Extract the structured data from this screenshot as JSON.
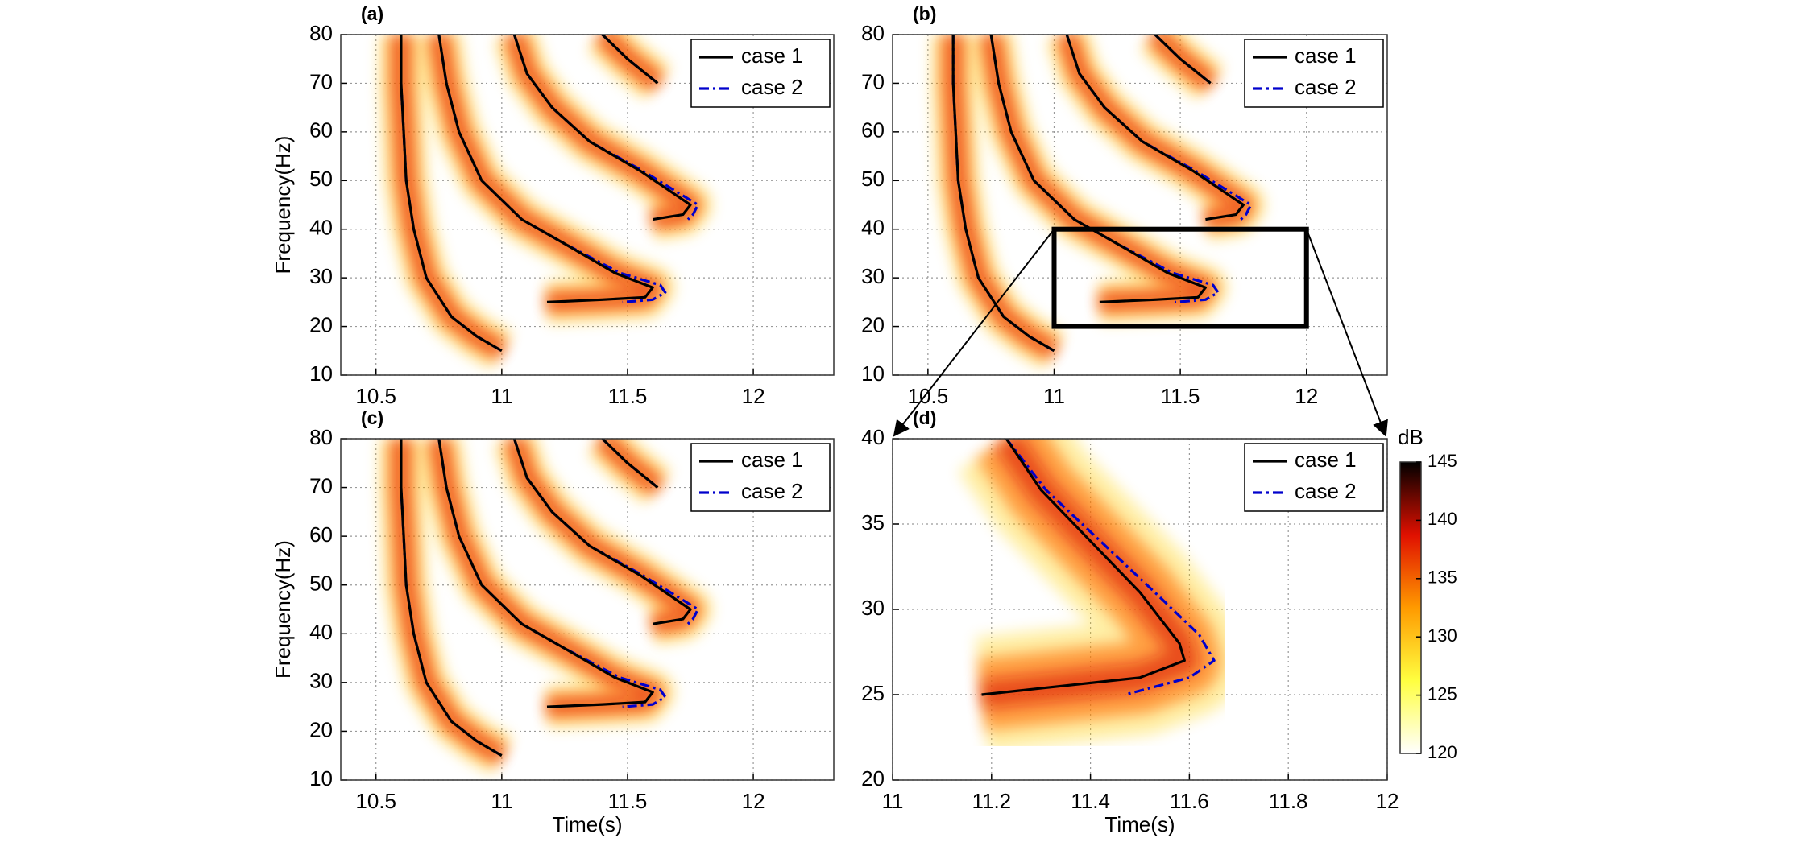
{
  "chart_data": [
    {
      "type": "line",
      "title": "(a)",
      "ylabel": "Frequency(Hz)",
      "xlim": [
        10.36,
        12.32
      ],
      "ylim": [
        10,
        80
      ],
      "xticks": [
        10.5,
        11,
        11.5,
        12
      ],
      "yticks": [
        10,
        20,
        30,
        40,
        50,
        60,
        70,
        80
      ],
      "grid": true,
      "legend": "upper right",
      "series": [
        {
          "name": "case 1",
          "color": "#000000",
          "x": [
            10.6,
            10.6,
            10.61,
            10.62,
            10.65,
            10.7,
            10.8,
            10.9,
            11.0,
            null,
            10.75,
            10.78,
            10.83,
            10.92,
            11.08,
            11.25,
            11.45,
            11.6,
            11.57,
            11.4,
            11.18,
            null,
            11.05,
            11.1,
            11.2,
            11.35,
            11.55,
            11.75,
            11.72,
            11.6,
            null,
            11.4,
            11.5,
            11.62
          ],
          "values": [
            80,
            70,
            60,
            50,
            40,
            30,
            22,
            18,
            15,
            null,
            80,
            70,
            60,
            50,
            42,
            37,
            31,
            28,
            26,
            25.5,
            25,
            null,
            80,
            72,
            65,
            58,
            52,
            45,
            43,
            42,
            null,
            80,
            75,
            70
          ]
        },
        {
          "name": "case 2",
          "color": "#0000cc",
          "x": [
            10.6,
            10.6,
            10.61,
            10.62,
            10.65,
            10.7,
            10.8,
            10.9,
            11.0,
            null,
            10.75,
            10.78,
            10.83,
            10.92,
            11.08,
            11.25,
            11.47,
            11.63,
            11.65,
            11.6,
            11.48,
            null,
            11.05,
            11.1,
            11.2,
            11.35,
            11.56,
            11.78,
            11.76,
            11.74,
            null,
            11.4,
            11.5,
            11.62
          ],
          "values": [
            80,
            70,
            60,
            50,
            40,
            30,
            22,
            18,
            15,
            null,
            80,
            70,
            60,
            50,
            42,
            37,
            31,
            28.5,
            27,
            25.5,
            25,
            null,
            80,
            72,
            65,
            58,
            52,
            45,
            43,
            42,
            null,
            80,
            75,
            70
          ]
        }
      ]
    },
    {
      "type": "line",
      "title": "(b)",
      "xlim": [
        10.36,
        12.32
      ],
      "ylim": [
        10,
        80
      ],
      "xticks": [
        10.5,
        11,
        11.5,
        12
      ],
      "yticks": [
        10,
        20,
        30,
        40,
        50,
        60,
        70,
        80
      ],
      "grid": true,
      "legend": "upper right",
      "series": [
        {
          "name": "case 1",
          "color": "#000000",
          "x": [
            10.6,
            10.6,
            10.61,
            10.62,
            10.65,
            10.7,
            10.8,
            10.9,
            11.0,
            null,
            10.75,
            10.78,
            10.83,
            10.92,
            11.08,
            11.25,
            11.45,
            11.6,
            11.57,
            11.4,
            11.18,
            null,
            11.05,
            11.1,
            11.2,
            11.35,
            11.55,
            11.75,
            11.72,
            11.6,
            null,
            11.4,
            11.5,
            11.62
          ],
          "values": [
            80,
            70,
            60,
            50,
            40,
            30,
            22,
            18,
            15,
            null,
            80,
            70,
            60,
            50,
            42,
            37,
            31,
            28,
            26,
            25.5,
            25,
            null,
            80,
            72,
            65,
            58,
            52,
            45,
            43,
            42,
            null,
            80,
            75,
            70
          ]
        },
        {
          "name": "case 2",
          "color": "#0000cc",
          "x": [
            10.6,
            10.6,
            10.61,
            10.62,
            10.65,
            10.7,
            10.8,
            10.9,
            11.0,
            null,
            10.75,
            10.78,
            10.83,
            10.92,
            11.08,
            11.25,
            11.47,
            11.63,
            11.65,
            11.6,
            11.48,
            null,
            11.05,
            11.1,
            11.2,
            11.35,
            11.56,
            11.78,
            11.76,
            11.74,
            null,
            11.4,
            11.5,
            11.62
          ],
          "values": [
            80,
            70,
            60,
            50,
            40,
            30,
            22,
            18,
            15,
            null,
            80,
            70,
            60,
            50,
            42,
            37,
            31,
            28.5,
            27,
            25.5,
            25,
            null,
            80,
            72,
            65,
            58,
            52,
            45,
            43,
            42,
            null,
            80,
            75,
            70
          ]
        }
      ]
    },
    {
      "type": "line",
      "title": "(c)",
      "ylabel": "Frequency(Hz)",
      "xlabel": "Time(s)",
      "xlim": [
        10.36,
        12.32
      ],
      "ylim": [
        10,
        80
      ],
      "xticks": [
        10.5,
        11,
        11.5,
        12
      ],
      "yticks": [
        10,
        20,
        30,
        40,
        50,
        60,
        70,
        80
      ],
      "grid": true,
      "legend": "upper right",
      "series": [
        {
          "name": "case 1",
          "color": "#000000",
          "x": [
            10.6,
            10.6,
            10.61,
            10.62,
            10.65,
            10.7,
            10.8,
            10.9,
            11.0,
            null,
            10.75,
            10.78,
            10.83,
            10.92,
            11.08,
            11.25,
            11.45,
            11.6,
            11.57,
            11.4,
            11.18,
            null,
            11.05,
            11.1,
            11.2,
            11.35,
            11.55,
            11.75,
            11.72,
            11.6,
            null,
            11.4,
            11.5,
            11.62
          ],
          "values": [
            80,
            70,
            60,
            50,
            40,
            30,
            22,
            18,
            15,
            null,
            80,
            70,
            60,
            50,
            42,
            37,
            31,
            28,
            26,
            25.5,
            25,
            null,
            80,
            72,
            65,
            58,
            52,
            45,
            43,
            42,
            null,
            80,
            75,
            70
          ]
        },
        {
          "name": "case 2",
          "color": "#0000cc",
          "x": [
            10.6,
            10.6,
            10.61,
            10.62,
            10.65,
            10.7,
            10.8,
            10.9,
            11.0,
            null,
            10.75,
            10.78,
            10.83,
            10.92,
            11.08,
            11.25,
            11.47,
            11.63,
            11.65,
            11.6,
            11.48,
            null,
            11.05,
            11.1,
            11.2,
            11.35,
            11.56,
            11.78,
            11.76,
            11.74,
            null,
            11.4,
            11.5,
            11.62
          ],
          "values": [
            80,
            70,
            60,
            50,
            40,
            30,
            22,
            18,
            15,
            null,
            80,
            70,
            60,
            50,
            42,
            37,
            31,
            28.5,
            27,
            25.5,
            25,
            null,
            80,
            72,
            65,
            58,
            52,
            45,
            43,
            42,
            null,
            80,
            75,
            70
          ]
        }
      ]
    },
    {
      "type": "line",
      "title": "(d)",
      "xlabel": "Time(s)",
      "xlim": [
        11,
        12
      ],
      "ylim": [
        20,
        40
      ],
      "xticks": [
        11,
        11.2,
        11.4,
        11.6,
        11.8,
        12
      ],
      "yticks": [
        20,
        25,
        30,
        35,
        40
      ],
      "grid": true,
      "legend": "upper right",
      "series": [
        {
          "name": "case 1",
          "color": "#000000",
          "x": [
            11.23,
            11.3,
            11.4,
            11.5,
            11.58,
            11.59,
            11.5,
            11.18
          ],
          "values": [
            40,
            37,
            34,
            31,
            28,
            27,
            26,
            25
          ]
        },
        {
          "name": "case 2",
          "color": "#0000cc",
          "x": [
            11.23,
            11.31,
            11.42,
            11.53,
            11.62,
            11.65,
            11.6,
            11.47
          ],
          "values": [
            40,
            37,
            34,
            31,
            28.5,
            27,
            26,
            25
          ]
        }
      ],
      "colorbar": {
        "label": "dB",
        "lim": [
          120,
          145
        ],
        "ticks": [
          120,
          125,
          130,
          135,
          140,
          145
        ]
      }
    }
  ]
}
